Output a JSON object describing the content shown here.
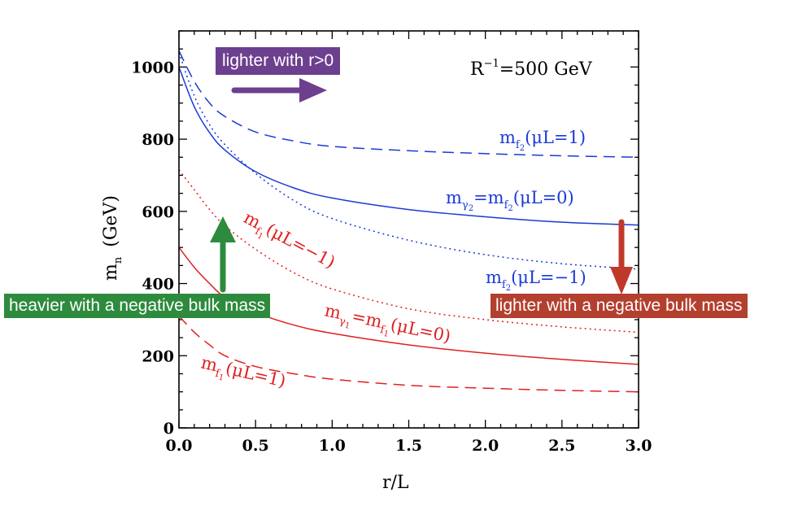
{
  "chart_data": {
    "type": "line",
    "xlabel": "r/L",
    "ylabel": "m",
    "ylabel_sub": "n",
    "ylabel_unit": "(GeV)",
    "xlim": [
      0,
      3
    ],
    "ylim": [
      0,
      1100
    ],
    "x_ticks": [
      "0.0",
      "0.5",
      "1.0",
      "1.5",
      "2.0",
      "2.5",
      "3.0"
    ],
    "y_ticks": [
      "0",
      "200",
      "400",
      "600",
      "800",
      "1000"
    ],
    "inset_label": {
      "main": "R",
      "sup": "−1",
      "rest": "=500  GeV"
    },
    "x": [
      0.0,
      0.1,
      0.2,
      0.3,
      0.5,
      0.75,
      1.0,
      1.5,
      2.0,
      2.5,
      3.0
    ],
    "series": [
      {
        "name": "m_f2 (muL=1)",
        "color": "#1a3ad6",
        "dash": "dashed",
        "values": [
          1045,
          960,
          900,
          863,
          820,
          795,
          780,
          768,
          760,
          754,
          750
        ]
      },
      {
        "name": "m_gamma2 = m_f2 (muL=0)",
        "color": "#1a3ad6",
        "dash": "solid",
        "values": [
          1000,
          890,
          818,
          770,
          710,
          665,
          637,
          605,
          585,
          570,
          562
        ]
      },
      {
        "name": "m_f2 (muL=-1)",
        "color": "#1a3ad6",
        "dash": "dotted",
        "values": [
          1040,
          920,
          840,
          785,
          705,
          630,
          580,
          520,
          480,
          455,
          440
        ]
      },
      {
        "name": "m_f1 (muL=-1)",
        "color": "#e02020",
        "dash": "dotted",
        "values": [
          715,
          660,
          605,
          560,
          495,
          430,
          385,
          330,
          300,
          280,
          265
        ]
      },
      {
        "name": "m_gamma1 = m_f1 (muL=0)",
        "color": "#e02020",
        "dash": "solid",
        "values": [
          500,
          445,
          400,
          362,
          320,
          285,
          262,
          230,
          207,
          190,
          176
        ]
      },
      {
        "name": "m_f1 (muL=1)",
        "color": "#e02020",
        "dash": "dashed",
        "values": [
          310,
          265,
          230,
          200,
          170,
          150,
          135,
          118,
          110,
          104,
          100
        ]
      }
    ],
    "curve_labels": [
      {
        "text_main": "m",
        "sub": "f",
        "subsub": "2",
        "rest": "(μL=1)",
        "color": "#1a3ad6"
      },
      {
        "text_main": "m",
        "sub": "γ",
        "subsub": "2",
        "mid": "=m",
        "sub_b": "f",
        "subsub_b": "2",
        "rest": "(μL=0)",
        "color": "#1a3ad6"
      },
      {
        "text_main": "m",
        "sub": "f",
        "subsub": "2",
        "rest": "(μL=−1)",
        "color": "#1a3ad6"
      },
      {
        "text_main": "m",
        "sub": "f",
        "subsub": "1",
        "rest": "(μL=−1)",
        "color": "#e02020"
      },
      {
        "text_main": "m",
        "sub": "γ",
        "subsub": "1",
        "mid": "=m",
        "sub_b": "f",
        "subsub_b": "1",
        "rest": "(μL=0)",
        "color": "#e02020"
      },
      {
        "text_main": "m",
        "sub": "f",
        "subsub": "1",
        "rest": "(μL=1)",
        "color": "#e02020"
      }
    ],
    "annotations": [
      {
        "text": "lighter with r>0",
        "color": "#6d3f8f"
      },
      {
        "text": "heavier with a negative bulk mass",
        "color": "#2e8b3e"
      },
      {
        "text": "lighter with a negative bulk mass",
        "color": "#b3402e"
      }
    ]
  }
}
